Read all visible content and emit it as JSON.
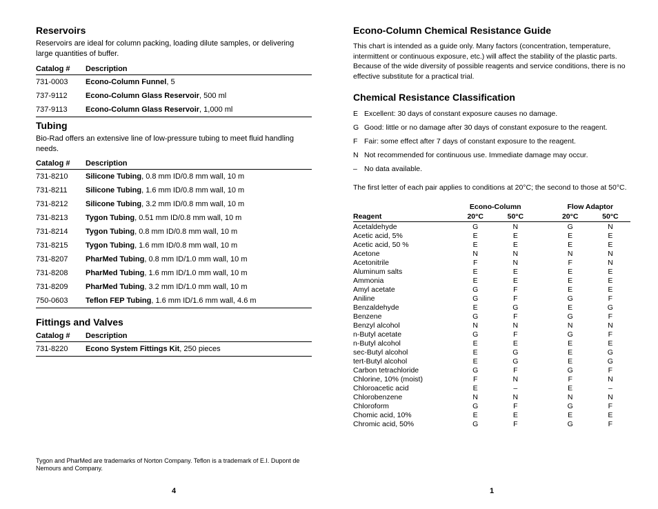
{
  "left": {
    "reservoirs": {
      "title": "Reservoirs",
      "intro": "Reservoirs are ideal for column packing, loading dilute samples, or delivering large quantities of buffer.",
      "headers": {
        "cat": "Catalog #",
        "desc": "Description"
      },
      "rows": [
        {
          "cat": "731-0003",
          "bold": "Econo-Column Funnel",
          "rest": ", 5"
        },
        {
          "cat": "737-9112",
          "bold": "Econo-Column Glass Reservoir",
          "rest": ", 500 ml"
        },
        {
          "cat": "737-9113",
          "bold": "Econo-Column Glass Reservoir",
          "rest": ", 1,000 ml"
        }
      ]
    },
    "tubing": {
      "title": "Tubing",
      "intro": "Bio-Rad offers an extensive line of low-pressure tubing to meet fluid handling needs.",
      "headers": {
        "cat": "Catalog #",
        "desc": "Description"
      },
      "groups": [
        [
          {
            "cat": "731-8210",
            "bold": "Silicone Tubing",
            "rest": ", 0.8 mm ID/0.8 mm wall, 10 m"
          },
          {
            "cat": "731-8211",
            "bold": "Silicone Tubing",
            "rest": ", 1.6 mm ID/0.8 mm wall, 10 m"
          },
          {
            "cat": "731-8212",
            "bold": "Silicone Tubing",
            "rest": ", 3.2 mm ID/0.8 mm wall, 10 m"
          }
        ],
        [
          {
            "cat": "731-8213",
            "bold": "Tygon Tubing",
            "rest": ", 0.51 mm ID/0.8 mm wall, 10 m"
          },
          {
            "cat": "731-8214",
            "bold": "Tygon Tubing",
            "rest": ", 0.8 mm ID/0.8 mm wall, 10 m"
          },
          {
            "cat": "731-8215",
            "bold": "Tygon Tubing",
            "rest": ", 1.6 mm ID/0.8 mm wall, 10 m"
          }
        ],
        [
          {
            "cat": "731-8207",
            "bold": "PharMed Tubing",
            "rest": ", 0.8 mm ID/1.0 mm wall, 10 m"
          },
          {
            "cat": "731-8208",
            "bold": "PharMed Tubing",
            "rest": ", 1.6 mm ID/1.0 mm wall, 10 m"
          },
          {
            "cat": "731-8209",
            "bold": "PharMed Tubing",
            "rest": ", 3.2 mm ID/1.0 mm wall, 10 m"
          }
        ],
        [
          {
            "cat": "750-0603",
            "bold": "Teflon FEP Tubing",
            "rest": ", 1.6 mm ID/1.6 mm wall, 4.6 m"
          }
        ]
      ]
    },
    "fittings": {
      "title": "Fittings and Valves",
      "headers": {
        "cat": "Catalog #",
        "desc": "Description"
      },
      "rows": [
        {
          "cat": "731-8220",
          "bold": "Econo System Fittings Kit",
          "rest": ", 250 pieces"
        }
      ]
    },
    "footnote": "Tygon and PharMed are trademarks of Norton Company. Teflon is a trademark of E.I. Dupont de Nemours and Company.",
    "pagenum": "4"
  },
  "right": {
    "guide_title": "Econo-Column Chemical Resistance Guide",
    "guide_intro": "This chart is intended as a guide only. Many factors (concentration, temperature, intermittent or continuous exposure, etc.) will affect the stability of the plastic parts. Because of the wide diversity of possible reagents and service conditions, there is no effective substitute for a practical trial.",
    "class_title": "Chemical Resistance Classification",
    "class_defs": [
      {
        "code": "E",
        "txt": "Excellent: 30 days of constant exposure causes no damage."
      },
      {
        "code": "G",
        "txt": "Good: little or no damage after 30 days of constant exposure to the reagent."
      },
      {
        "code": "F",
        "txt": "Fair: some effect after 7 days of constant exposure to the reagent."
      },
      {
        "code": "N",
        "txt": "Not recommended for continuous use. Immediate damage may occur."
      },
      {
        "code": "–",
        "txt": "No data available."
      }
    ],
    "condition_note": "The first letter of each pair applies to conditions at 20°C; the second to those at 50°C.",
    "table": {
      "group_headers": {
        "reagent": "",
        "econo": "Econo-Column",
        "flow": "Flow Adaptor"
      },
      "col_headers": {
        "reagent": "Reagent",
        "t20": "20°C",
        "t50": "50°C"
      },
      "rows": [
        {
          "r": "Acetaldehyde",
          "e20": "G",
          "e50": "N",
          "f20": "G",
          "f50": "N"
        },
        {
          "r": "Acetic acid, 5%",
          "e20": "E",
          "e50": "E",
          "f20": "E",
          "f50": "E"
        },
        {
          "r": "Acetic acid, 50 %",
          "e20": "E",
          "e50": "E",
          "f20": "E",
          "f50": "E"
        },
        {
          "r": "Acetone",
          "e20": "N",
          "e50": "N",
          "f20": "N",
          "f50": "N"
        },
        {
          "r": "Acetonitrile",
          "e20": "F",
          "e50": "N",
          "f20": "F",
          "f50": "N"
        },
        {
          "r": "Aluminum salts",
          "e20": "E",
          "e50": "E",
          "f20": "E",
          "f50": "E"
        },
        {
          "r": "Ammonia",
          "e20": "E",
          "e50": "E",
          "f20": "E",
          "f50": "E"
        },
        {
          "r": "Amyl acetate",
          "e20": "G",
          "e50": "F",
          "f20": "E",
          "f50": "E"
        },
        {
          "r": "Aniline",
          "e20": "G",
          "e50": "F",
          "f20": "G",
          "f50": "F"
        },
        {
          "r": "Benzaldehyde",
          "e20": "E",
          "e50": "G",
          "f20": "E",
          "f50": "G"
        },
        {
          "r": "Benzene",
          "e20": "G",
          "e50": "F",
          "f20": "G",
          "f50": "F"
        },
        {
          "r": "Benzyl alcohol",
          "e20": "N",
          "e50": "N",
          "f20": "N",
          "f50": "N"
        },
        {
          "r": "n-Butyl acetate",
          "e20": "G",
          "e50": "F",
          "f20": "G",
          "f50": "F"
        },
        {
          "r": "n-Butyl alcohol",
          "e20": "E",
          "e50": "E",
          "f20": "E",
          "f50": "E"
        },
        {
          "r": "sec-Butyl alcohol",
          "e20": "E",
          "e50": "G",
          "f20": "E",
          "f50": "G"
        },
        {
          "r": "tert-Butyl alcohol",
          "e20": "E",
          "e50": "G",
          "f20": "E",
          "f50": "G"
        },
        {
          "r": "Carbon tetrachloride",
          "e20": "G",
          "e50": "F",
          "f20": "G",
          "f50": "F"
        },
        {
          "r": "Chlorine, 10% (moist)",
          "e20": "F",
          "e50": "N",
          "f20": "F",
          "f50": "N"
        },
        {
          "r": "Chloroacetic acid",
          "e20": "E",
          "e50": "–",
          "f20": "E",
          "f50": "–"
        },
        {
          "r": "Chlorobenzene",
          "e20": "N",
          "e50": "N",
          "f20": "N",
          "f50": "N"
        },
        {
          "r": "Chloroform",
          "e20": "G",
          "e50": "F",
          "f20": "G",
          "f50": "F"
        },
        {
          "r": "Chomic acid, 10%",
          "e20": "E",
          "e50": "E",
          "f20": "E",
          "f50": "E"
        },
        {
          "r": "Chromic acid, 50%",
          "e20": "G",
          "e50": "F",
          "f20": "G",
          "f50": "F"
        }
      ]
    },
    "pagenum": "1"
  }
}
